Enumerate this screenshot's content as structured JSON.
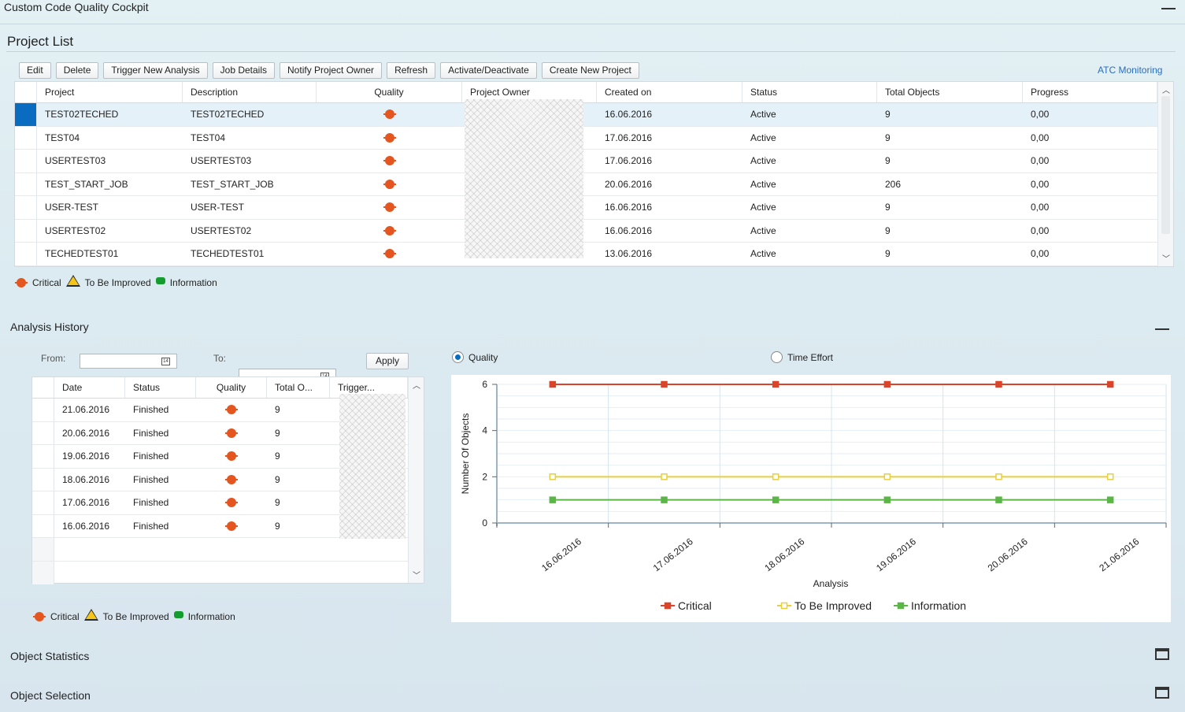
{
  "app": {
    "title": "Custom Code Quality Cockpit"
  },
  "project_list": {
    "title": "Project List",
    "toolbar": [
      "Edit",
      "Delete",
      "Trigger New Analysis",
      "Job Details",
      "Notify Project Owner",
      "Refresh",
      "Activate/Deactivate",
      "Create New Project"
    ],
    "atc_link": "ATC Monitoring",
    "columns": [
      "Project",
      "Description",
      "Quality",
      "Project Owner",
      "Created on",
      "Status",
      "Total Objects",
      "Progress"
    ],
    "rows": [
      {
        "project": "TEST02TECHED",
        "description": "TEST02TECHED",
        "quality": "critical",
        "created_on": "16.06.2016",
        "status": "Active",
        "total_objects": "9",
        "progress": "0,00"
      },
      {
        "project": "TEST04",
        "description": "TEST04",
        "quality": "critical",
        "created_on": "17.06.2016",
        "status": "Active",
        "total_objects": "9",
        "progress": "0,00"
      },
      {
        "project": "USERTEST03",
        "description": "USERTEST03",
        "quality": "critical",
        "created_on": "17.06.2016",
        "status": "Active",
        "total_objects": "9",
        "progress": "0,00"
      },
      {
        "project": "TEST_START_JOB",
        "description": "TEST_START_JOB",
        "quality": "critical",
        "created_on": "20.06.2016",
        "status": "Active",
        "total_objects": "206",
        "progress": "0,00"
      },
      {
        "project": "USER-TEST",
        "description": "USER-TEST",
        "quality": "critical",
        "created_on": "16.06.2016",
        "status": "Active",
        "total_objects": "9",
        "progress": "0,00"
      },
      {
        "project": "USERTEST02",
        "description": "USERTEST02",
        "quality": "critical",
        "created_on": "16.06.2016",
        "status": "Active",
        "total_objects": "9",
        "progress": "0,00"
      },
      {
        "project": "TECHEDTEST01",
        "description": "TECHEDTEST01",
        "quality": "critical",
        "created_on": "13.06.2016",
        "status": "Active",
        "total_objects": "9",
        "progress": "0,00"
      }
    ],
    "selected_row": 0
  },
  "legend": {
    "critical": "Critical",
    "to_be_improved": "To Be Improved",
    "information": "Information"
  },
  "analysis_history": {
    "title": "Analysis History",
    "from_label": "From:",
    "to_label": "To:",
    "apply": "Apply",
    "columns": [
      "Date",
      "Status",
      "Quality",
      "Total O...",
      "Trigger..."
    ],
    "rows": [
      {
        "date": "21.06.2016",
        "status": "Finished",
        "quality": "critical",
        "total": "9"
      },
      {
        "date": "20.06.2016",
        "status": "Finished",
        "quality": "critical",
        "total": "9"
      },
      {
        "date": "19.06.2016",
        "status": "Finished",
        "quality": "critical",
        "total": "9"
      },
      {
        "date": "18.06.2016",
        "status": "Finished",
        "quality": "critical",
        "total": "9"
      },
      {
        "date": "17.06.2016",
        "status": "Finished",
        "quality": "critical",
        "total": "9"
      },
      {
        "date": "16.06.2016",
        "status": "Finished",
        "quality": "critical",
        "total": "9"
      }
    ],
    "radio_quality": "Quality",
    "radio_time_effort": "Time Effort",
    "selected_radio": "quality"
  },
  "chart_data": {
    "type": "line",
    "x": [
      "16.06.2016",
      "17.06.2016",
      "18.06.2016",
      "19.06.2016",
      "20.06.2016",
      "21.06.2016"
    ],
    "series": [
      {
        "name": "Critical",
        "values": [
          6,
          6,
          6,
          6,
          6,
          6
        ],
        "color": "#d9452b"
      },
      {
        "name": "To Be Improved",
        "values": [
          2,
          2,
          2,
          2,
          2,
          2
        ],
        "color": "#e8cf3c"
      },
      {
        "name": "Information",
        "values": [
          1,
          1,
          1,
          1,
          1,
          1
        ],
        "color": "#5bb647"
      }
    ],
    "xlabel": "Analysis",
    "ylabel": "Number Of Objects",
    "ylim": [
      0,
      6
    ],
    "yticks": [
      0,
      2,
      4,
      6
    ],
    "grid": true,
    "legend_position": "bottom"
  },
  "sections": {
    "object_statistics": "Object Statistics",
    "object_selection": "Object Selection"
  },
  "colors": {
    "critical": "#e4551f",
    "warning": "#f5c518",
    "info": "#159c2f",
    "selection": "#0a6cc0",
    "link": "#2a6ebb"
  }
}
